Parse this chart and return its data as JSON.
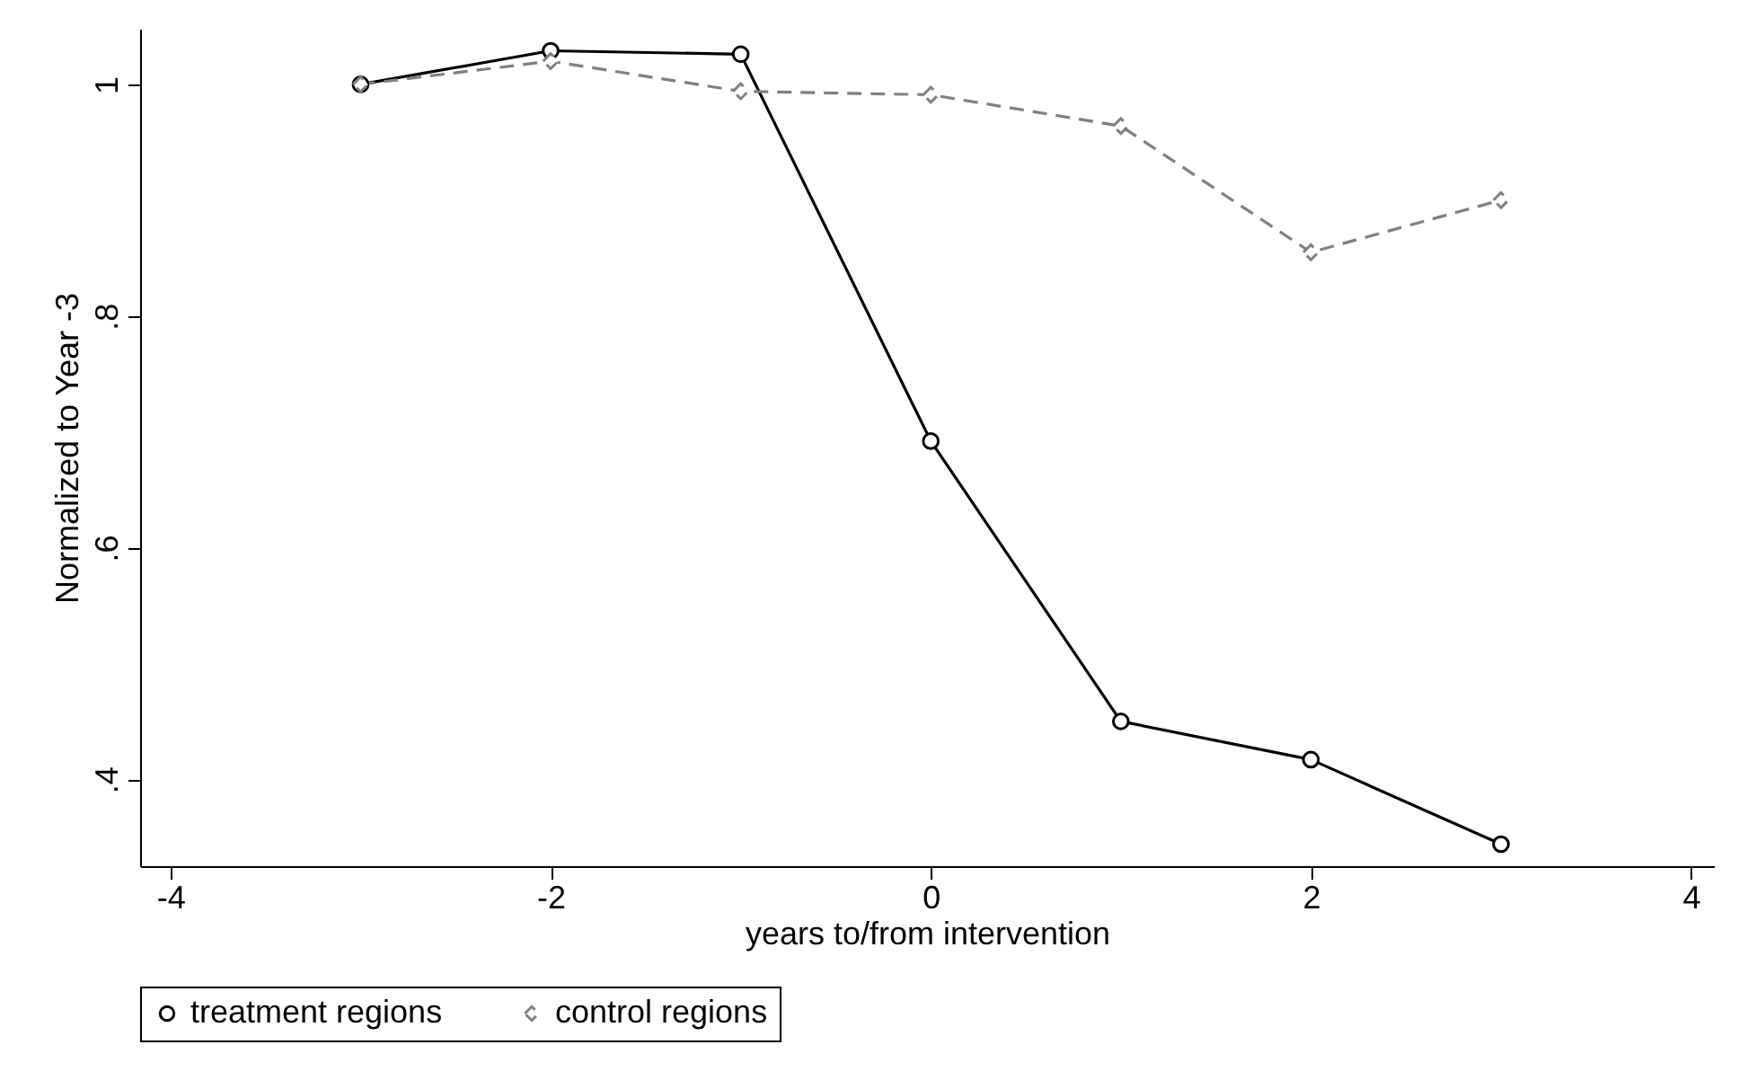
{
  "chart_data": {
    "type": "line",
    "xlabel": "years to/from intervention",
    "ylabel": "Normalized to Year -3",
    "x": [
      -3,
      -2,
      -1,
      0,
      1,
      2,
      3
    ],
    "series": [
      {
        "name": "treatment regions",
        "color": "#000000",
        "marker": "circle",
        "line_style": "solid",
        "values": [
          1.0,
          1.029,
          1.026,
          0.692,
          0.45,
          0.417,
          0.344
        ]
      },
      {
        "name": "control regions",
        "color": "#808080",
        "marker": "diamond",
        "line_style": "dashed",
        "values": [
          1.0,
          1.02,
          0.994,
          0.991,
          0.964,
          0.855,
          0.9
        ]
      }
    ],
    "xlim": [
      -4.16,
      4.12
    ],
    "xticks": [
      -4,
      -2,
      0,
      2,
      4
    ],
    "ylim": [
      0.325,
      1.048
    ],
    "yticks": [
      {
        "value": 0.4,
        "label": ".4"
      },
      {
        "value": 0.6,
        "label": ".6"
      },
      {
        "value": 0.8,
        "label": ".8"
      },
      {
        "value": 1,
        "label": "1"
      }
    ],
    "grid": false,
    "legend": "bottom"
  }
}
